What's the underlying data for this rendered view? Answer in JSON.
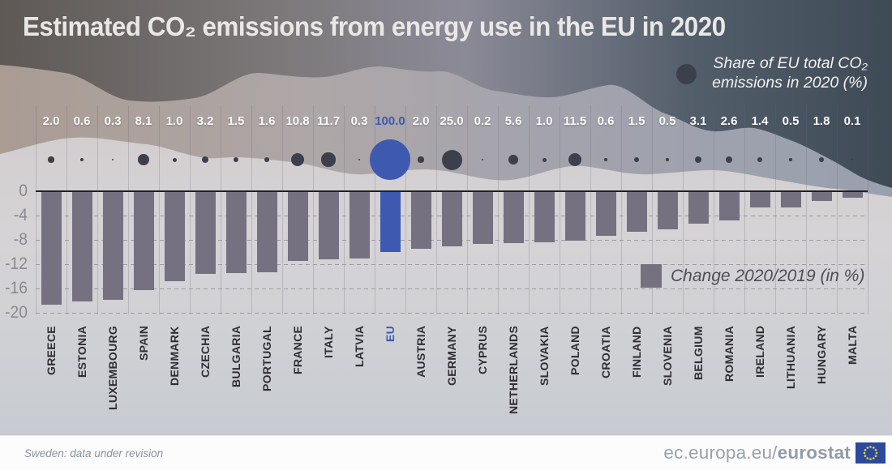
{
  "title": "Estimated CO₂ emissions from energy use in the EU in 2020",
  "legend_bubble": {
    "line1": "Share of EU total CO₂",
    "line2": "emissions in 2020 (%)"
  },
  "legend_bar": "Change 2020/2019 (in %)",
  "footnote": "Sweden: data under revision",
  "footer": {
    "url_prefix": "ec.europa.eu/",
    "url_bold": "eurostat"
  },
  "colors": {
    "eu_blue": "#3d5ab0",
    "bar_gray": "#767181",
    "bubble_dark": "#3b404c",
    "label_dark": "#2f2e34",
    "flag_blue": "#2b4a9c",
    "flag_star": "#f2d23d"
  },
  "y_axis": {
    "ticks": [
      0,
      -4,
      -8,
      -12,
      -16,
      -20
    ]
  },
  "chart_data": {
    "type": "bar",
    "title": "Estimated CO₂ emissions from energy use in the EU in 2020",
    "categories": [
      "GREECE",
      "ESTONIA",
      "LUXEMBOURG",
      "SPAIN",
      "DENMARK",
      "CZECHIA",
      "BULGARIA",
      "PORTUGAL",
      "FRANCE",
      "ITALY",
      "LATVIA",
      "EU",
      "AUSTRIA",
      "GERMANY",
      "CYPRUS",
      "NETHERLANDS",
      "SLOVAKIA",
      "POLAND",
      "CROATIA",
      "FINLAND",
      "SLOVENIA",
      "BELGIUM",
      "ROMANIA",
      "IRELAND",
      "LITHUANIA",
      "HUNGARY",
      "MALTA"
    ],
    "series": [
      {
        "name": "Share of EU total CO₂ emissions in 2020 (%)",
        "type": "bubble",
        "values": [
          2.0,
          0.6,
          0.3,
          8.1,
          1.0,
          3.2,
          1.5,
          1.6,
          10.8,
          11.7,
          0.3,
          100.0,
          2.0,
          25.0,
          0.2,
          5.6,
          1.0,
          11.5,
          0.6,
          1.5,
          0.5,
          3.1,
          2.6,
          1.4,
          0.5,
          1.8,
          0.1
        ]
      },
      {
        "name": "Change 2020/2019 (in %)",
        "type": "bar",
        "values": [
          -18.7,
          -18.1,
          -17.9,
          -16.2,
          -14.8,
          -13.6,
          -13.5,
          -13.3,
          -11.4,
          -11.2,
          -11.0,
          -10.0,
          -9.4,
          -9.1,
          -8.7,
          -8.5,
          -8.4,
          -8.1,
          -7.3,
          -6.6,
          -6.2,
          -5.3,
          -4.8,
          -2.7,
          -2.6,
          -1.6,
          -1.0
        ]
      }
    ],
    "highlight_category": "EU",
    "ylim": [
      -20,
      0
    ],
    "grid": "horizontal-dashed-and-vertical-columns",
    "legend_position": [
      "top-right-bubble",
      "inside-plot-bar"
    ]
  }
}
